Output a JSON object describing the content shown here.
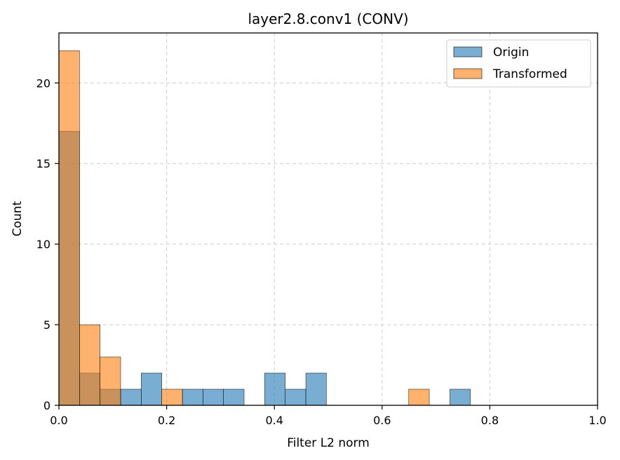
{
  "chart_data": {
    "type": "bar",
    "title": "layer2.8.conv1 (CONV)",
    "xlabel": "Filter L2 norm",
    "ylabel": "Count",
    "xlim": [
      0,
      1.0
    ],
    "ylim": [
      0,
      23.1
    ],
    "grid": true,
    "legend_position": "top-right",
    "xticks": [
      "0.0",
      "0.2",
      "0.4",
      "0.6",
      "0.8",
      "1.0"
    ],
    "xtick_values": [
      0,
      0.2,
      0.4,
      0.6,
      0.8,
      1.0
    ],
    "yticks": [
      "0",
      "5",
      "10",
      "15",
      "20"
    ],
    "ytick_values": [
      0,
      5,
      10,
      15,
      20
    ],
    "bin_edges": [
      0.0,
      0.0382,
      0.0764,
      0.1146,
      0.1528,
      0.191,
      0.2292,
      0.2674,
      0.3056,
      0.3438,
      0.382,
      0.4202,
      0.4584,
      0.4966,
      0.5348,
      0.573,
      0.6112,
      0.6494,
      0.6876,
      0.7258,
      0.764
    ],
    "series": [
      {
        "name": "Origin",
        "color": "#1f77b4",
        "counts": [
          17,
          2,
          1,
          1,
          2,
          0,
          1,
          1,
          1,
          0,
          2,
          1,
          2,
          0,
          0,
          0,
          0,
          0,
          0,
          1
        ]
      },
      {
        "name": "Transformed",
        "color": "#ff7f0e",
        "counts": [
          22,
          5,
          3,
          0,
          0,
          1,
          0,
          0,
          0,
          0,
          0,
          0,
          0,
          0,
          0,
          0,
          0,
          1,
          0,
          0
        ]
      }
    ]
  }
}
